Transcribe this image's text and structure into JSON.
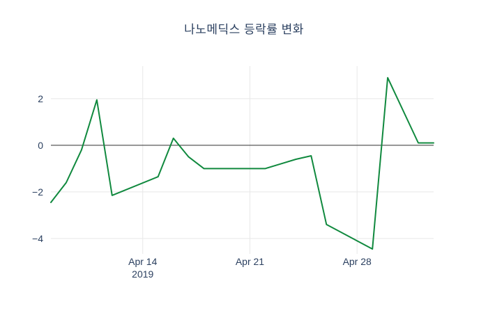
{
  "title": "나노메딕스 등락률 변화",
  "chart_data": {
    "type": "line",
    "title": "나노메딕스 등락률 변화",
    "xlabel": "",
    "ylabel": "",
    "legend": "none",
    "grid": true,
    "zero_line": true,
    "x_range": [
      "2019-04-08",
      "2019-05-03"
    ],
    "y_range": [
      -4.66,
      3.4
    ],
    "colors": {
      "line": "#10893e",
      "grid": "#e8e8e8",
      "zero_line": "#2f2f2f",
      "text": "#2a3f5f",
      "background": "#ffffff"
    },
    "y_ticks": [
      {
        "value": 2,
        "label": "2"
      },
      {
        "value": 0,
        "label": "0"
      },
      {
        "value": -2,
        "label": "−2"
      },
      {
        "value": -4,
        "label": "−4"
      }
    ],
    "x_ticks": [
      {
        "date": "2019-04-14",
        "label": "Apr 14",
        "sublabel": "2019"
      },
      {
        "date": "2019-04-21",
        "label": "Apr 21",
        "sublabel": ""
      },
      {
        "date": "2019-04-28",
        "label": "Apr 28",
        "sublabel": ""
      }
    ],
    "series": [
      {
        "name": "등락률",
        "color": "#10893e",
        "points": [
          {
            "date": "2019-04-08",
            "value": -2.45
          },
          {
            "date": "2019-04-09",
            "value": -1.6
          },
          {
            "date": "2019-04-10",
            "value": -0.2
          },
          {
            "date": "2019-04-11",
            "value": 1.95
          },
          {
            "date": "2019-04-12",
            "value": -2.15
          },
          {
            "date": "2019-04-15",
            "value": -1.35
          },
          {
            "date": "2019-04-16",
            "value": 0.3
          },
          {
            "date": "2019-04-17",
            "value": -0.5
          },
          {
            "date": "2019-04-18",
            "value": -1.0
          },
          {
            "date": "2019-04-19",
            "value": -1.0
          },
          {
            "date": "2019-04-22",
            "value": -1.0
          },
          {
            "date": "2019-04-23",
            "value": -0.8
          },
          {
            "date": "2019-04-24",
            "value": -0.6
          },
          {
            "date": "2019-04-25",
            "value": -0.45
          },
          {
            "date": "2019-04-26",
            "value": -3.4
          },
          {
            "date": "2019-04-29",
            "value": -4.45
          },
          {
            "date": "2019-04-30",
            "value": 2.9
          },
          {
            "date": "2019-05-02",
            "value": 0.1
          },
          {
            "date": "2019-05-03",
            "value": 0.1
          }
        ]
      }
    ]
  }
}
